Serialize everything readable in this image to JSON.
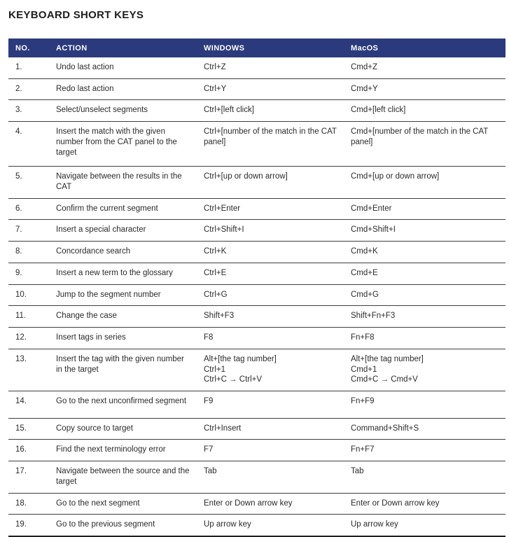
{
  "page": {
    "title": "KEYBOARD SHORT KEYS"
  },
  "colors": {
    "header_bg": "#2b3a7c",
    "header_text": "#ffffff",
    "row_border": "#3f3f3f",
    "body_text": "#2b2b2b"
  },
  "table": {
    "headers": [
      "NO.",
      "ACTION",
      "WINDOWS",
      "MacOS"
    ],
    "rows": [
      {
        "no": "1.",
        "action": "Undo last action",
        "windows": "Ctrl+Z",
        "macos": "Cmd+Z"
      },
      {
        "no": "2.",
        "action": "Redo last action",
        "windows": "Ctrl+Y",
        "macos": "Cmd+Y"
      },
      {
        "no": "3.",
        "action": "Select/unselect segments",
        "windows": "Ctrl+[left click]",
        "macos": "Cmd+[left click]"
      },
      {
        "no": "4.",
        "action": "Insert the match with the given number from the CAT panel to the target",
        "windows": "Ctrl+[number of the match in the CAT panel]",
        "macos": "Cmd+[number of the match in the CAT panel]"
      },
      {
        "no": "5.",
        "action": "Navigate between the results in the CAT",
        "windows": "Ctrl+[up or down arrow]",
        "macos": "Cmd+[up or down arrow]"
      },
      {
        "no": "6.",
        "action": "Confirm the current segment",
        "windows": "Ctrl+Enter",
        "macos": "Cmd+Enter"
      },
      {
        "no": "7.",
        "action": "Insert a special character",
        "windows": "Ctrl+Shift+I",
        "macos": "Cmd+Shift+I"
      },
      {
        "no": "8.",
        "action": "Concordance search",
        "windows": "Ctrl+K",
        "macos": "Cmd+K"
      },
      {
        "no": "9.",
        "action": "Insert a new term to the glossary",
        "windows": "Ctrl+E",
        "macos": "Cmd+E"
      },
      {
        "no": "10.",
        "action": "Jump to the segment number",
        "windows": "Ctrl+G",
        "macos": "Cmd+G"
      },
      {
        "no": "11.",
        "action": "Change the case",
        "windows": "Shift+F3",
        "macos": "Shift+Fn+F3"
      },
      {
        "no": "12.",
        "action": "Insert tags in series",
        "windows": "F8",
        "macos": "Fn+F8"
      },
      {
        "no": "13.",
        "action": "Insert the tag with the given number in the target",
        "windows": "Alt+[the tag number]\nCtrl+1\nCtrl+C → Ctrl+V",
        "macos": "Alt+[the tag number]\nCmd+1\nCmd+C → Cmd+V"
      },
      {
        "no": "14.",
        "action": "Go to the next unconfirmed segment",
        "windows": "F9",
        "macos": "Fn+F9"
      },
      {
        "no": "15.",
        "action": "Copy source to target",
        "windows": "Ctrl+Insert",
        "macos": "Command+Shift+S"
      },
      {
        "no": "16.",
        "action": "Find the next terminology error",
        "windows": "F7",
        "macos": "Fn+F7"
      },
      {
        "no": "17.",
        "action": "Navigate between the source and the target",
        "windows": "Tab",
        "macos": "Tab"
      },
      {
        "no": "18.",
        "action": "Go to the next segment",
        "windows": "Enter or Down arrow key",
        "macos": "Enter or Down arrow key"
      },
      {
        "no": "19.",
        "action": "Go to the previous segment",
        "windows": "Up arrow key",
        "macos": "Up arrow key"
      }
    ]
  }
}
